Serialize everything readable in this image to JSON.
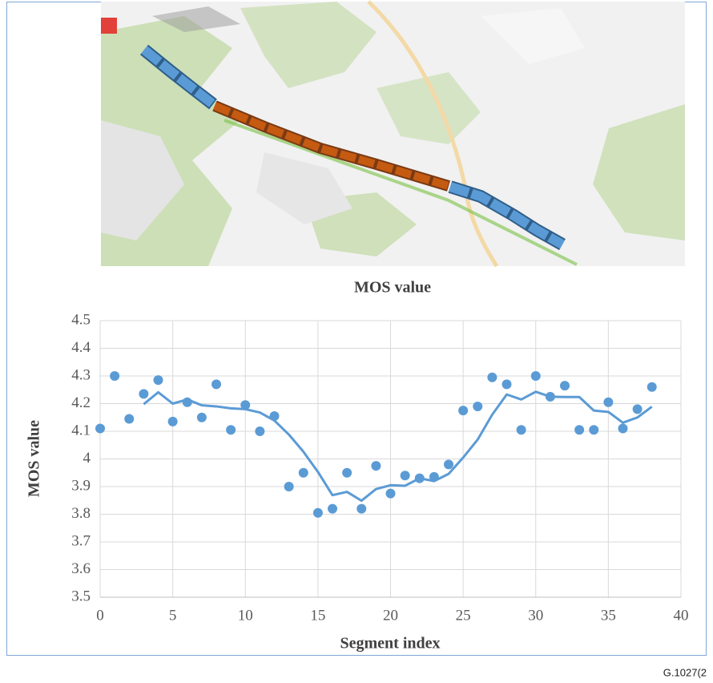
{
  "chart_data": {
    "type": "scatter",
    "title": "MOS value",
    "xlabel": "Segment index",
    "ylabel": "MOS value",
    "xlim": [
      0,
      40
    ],
    "ylim": [
      3.5,
      4.5
    ],
    "xticks": [
      0,
      5,
      10,
      15,
      20,
      25,
      30,
      35,
      40
    ],
    "yticks": [
      3.5,
      3.6,
      3.7,
      3.8,
      3.9,
      4,
      4.1,
      4.2,
      4.3,
      4.4,
      4.5
    ],
    "grid": true,
    "series": [
      {
        "type": "scatter",
        "color": "#5b9bd5",
        "x": [
          0,
          1,
          2,
          3,
          4,
          5,
          6,
          7,
          8,
          9,
          10,
          11,
          12,
          13,
          14,
          15,
          16,
          17,
          18,
          19,
          20,
          21,
          22,
          23,
          24,
          25,
          26,
          27,
          28,
          29,
          30,
          31,
          32,
          33,
          34,
          35,
          36,
          37,
          38
        ],
        "values": [
          4.11,
          4.3,
          4.145,
          4.235,
          4.285,
          4.135,
          4.205,
          4.15,
          4.27,
          4.105,
          4.195,
          4.1,
          4.155,
          3.9,
          3.95,
          3.805,
          3.82,
          3.95,
          3.82,
          3.975,
          3.875,
          3.94,
          3.93,
          3.935,
          3.98,
          4.175,
          4.19,
          4.295,
          4.27,
          4.105,
          4.3,
          4.225,
          4.265,
          4.105,
          4.105,
          4.205,
          4.11,
          4.18,
          4.26
        ]
      },
      {
        "type": "line",
        "color": "#5b9bd5",
        "x": [
          3,
          4,
          5,
          6,
          7,
          8,
          9,
          10,
          11,
          12,
          13,
          14,
          15,
          16,
          17,
          18,
          19,
          20,
          21,
          22,
          23,
          24,
          25,
          26,
          27,
          28,
          29,
          30,
          31,
          32,
          33,
          34,
          35,
          36,
          37,
          38
        ],
        "values": [
          4.198,
          4.241,
          4.2,
          4.215,
          4.194,
          4.19,
          4.183,
          4.18,
          4.168,
          4.139,
          4.088,
          4.026,
          3.953,
          3.869,
          3.881,
          3.849,
          3.891,
          3.905,
          3.903,
          3.93,
          3.92,
          3.946,
          4.005,
          4.07,
          4.16,
          4.233,
          4.215,
          4.243,
          4.225,
          4.224,
          4.224,
          4.175,
          4.17,
          4.131,
          4.15,
          4.189
        ]
      }
    ]
  },
  "figure_id": "G.1027(2"
}
